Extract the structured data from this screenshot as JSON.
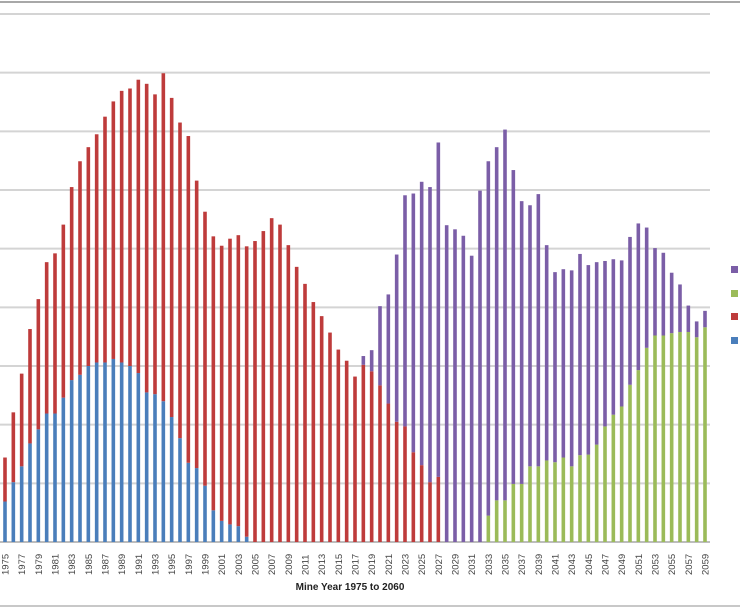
{
  "chart_data": {
    "type": "bar",
    "stacked": true,
    "title": "",
    "xlabel": "Mine Year 1975 to 2060",
    "ylabel": "",
    "ylim": [
      0,
      9
    ],
    "grid": true,
    "legend_placement": "right",
    "categories": [
      "1975",
      "1976",
      "1977",
      "1978",
      "1979",
      "1980",
      "1981",
      "1982",
      "1983",
      "1984",
      "1985",
      "1986",
      "1987",
      "1988",
      "1989",
      "1990",
      "1991",
      "1992",
      "1993",
      "1994",
      "1995",
      "1996",
      "1997",
      "1998",
      "1999",
      "2000",
      "2001",
      "2002",
      "2003",
      "2004",
      "2005",
      "2006",
      "2007",
      "2008",
      "2009",
      "2010",
      "2011",
      "2012",
      "2013",
      "2014",
      "2015",
      "2016",
      "2017",
      "2018",
      "2019",
      "2020",
      "2021",
      "2022",
      "2023",
      "2024",
      "2025",
      "2026",
      "2027",
      "2028",
      "2029",
      "2030",
      "2031",
      "2032",
      "2033",
      "2034",
      "2035",
      "2036",
      "2037",
      "2038",
      "2039",
      "2040",
      "2041",
      "2042",
      "2043",
      "2044",
      "2045",
      "2046",
      "2047",
      "2048",
      "2049",
      "2050",
      "2051",
      "2052",
      "2053",
      "2054",
      "2055",
      "2056",
      "2057",
      "2058",
      "2059"
    ],
    "tick_labels": [
      "1975",
      "1977",
      "1979",
      "1981",
      "1983",
      "1985",
      "1987",
      "1989",
      "1991",
      "1993",
      "1995",
      "1997",
      "1999",
      "2001",
      "2003",
      "2005",
      "2007",
      "2009",
      "2011",
      "2013",
      "2015",
      "2017",
      "2019",
      "2021",
      "2023",
      "2025",
      "2027",
      "2029",
      "2031",
      "2033",
      "2035",
      "2037",
      "2039",
      "2041",
      "2043",
      "2045",
      "2047",
      "2049",
      "2051",
      "2053",
      "2055",
      "2057",
      "2059"
    ],
    "series": [
      {
        "color": "#4A7EBB",
        "values": [
          0.69,
          1.02,
          1.29,
          1.68,
          1.92,
          2.19,
          2.19,
          2.46,
          2.76,
          2.85,
          3.0,
          3.06,
          3.06,
          3.12,
          3.06,
          3.0,
          2.88,
          2.55,
          2.52,
          2.4,
          2.13,
          1.77,
          1.35,
          1.26,
          0.96,
          0.54,
          0.36,
          0.3,
          0.27,
          0.09,
          0,
          0,
          0,
          0,
          0,
          0,
          0,
          0,
          0,
          0,
          0,
          0,
          0,
          0,
          0,
          0,
          0,
          0,
          0,
          0,
          0,
          0,
          0,
          0,
          0,
          0,
          0,
          0,
          0,
          0,
          0,
          0,
          0,
          0,
          0,
          0,
          0,
          0,
          0,
          0,
          0,
          0,
          0,
          0,
          0,
          0,
          0,
          0,
          0,
          0,
          0,
          0,
          0,
          0,
          0
        ]
      },
      {
        "color": "#9BBB59",
        "values": [
          0,
          0,
          0,
          0,
          0,
          0,
          0,
          0,
          0,
          0,
          0,
          0,
          0,
          0,
          0,
          0,
          0,
          0,
          0,
          0,
          0,
          0,
          0,
          0,
          0,
          0,
          0,
          0,
          0,
          0,
          0,
          0,
          0,
          0,
          0,
          0,
          0,
          0,
          0,
          0,
          0,
          0,
          0,
          0,
          0,
          0,
          0,
          0,
          0,
          0,
          0,
          0,
          0,
          0,
          0,
          0,
          0,
          0,
          0.45,
          0.71,
          0.71,
          0.99,
          0.99,
          1.29,
          1.29,
          1.39,
          1.36,
          1.44,
          1.29,
          1.48,
          1.49,
          1.66,
          1.97,
          2.17,
          2.31,
          2.68,
          2.93,
          3.31,
          3.52,
          3.52,
          3.56,
          3.58,
          3.58,
          3.49,
          3.66
        ]
      },
      {
        "color": "#BE3B3B",
        "values": [
          0.75,
          1.19,
          1.58,
          1.95,
          2.22,
          2.58,
          2.73,
          2.95,
          3.29,
          3.64,
          3.73,
          3.89,
          4.19,
          4.39,
          4.63,
          4.73,
          5.0,
          5.26,
          5.11,
          5.59,
          5.44,
          5.38,
          5.57,
          4.9,
          4.67,
          4.67,
          4.69,
          4.87,
          4.96,
          4.95,
          5.13,
          5.3,
          5.52,
          5.41,
          5.06,
          4.69,
          4.4,
          4.09,
          3.85,
          3.57,
          3.28,
          3.09,
          2.82,
          3.02,
          2.91,
          2.67,
          2.36,
          2.05,
          1.97,
          1.53,
          1.31,
          1.02,
          1.11,
          0,
          0,
          0,
          0,
          0,
          0,
          0,
          0,
          0,
          0,
          0,
          0,
          0,
          0,
          0,
          0,
          0,
          0,
          0,
          0,
          0,
          0,
          0,
          0,
          0,
          0,
          0,
          0,
          0,
          0,
          0,
          0
        ]
      },
      {
        "color": "#7B5EA7",
        "values": [
          0,
          0,
          0,
          0,
          0,
          0,
          0,
          0,
          0,
          0,
          0,
          0,
          0,
          0,
          0,
          0,
          0,
          0,
          0,
          0,
          0,
          0,
          0,
          0,
          0,
          0,
          0,
          0,
          0,
          0,
          0,
          0,
          0,
          0,
          0,
          0,
          0,
          0,
          0,
          0,
          0,
          0,
          0,
          0.15,
          0.36,
          1.35,
          1.86,
          2.85,
          3.94,
          4.41,
          4.83,
          5.03,
          5.7,
          5.4,
          5.33,
          5.22,
          4.88,
          5.99,
          6.04,
          6.02,
          6.32,
          5.35,
          4.82,
          4.45,
          4.64,
          3.67,
          3.24,
          3.21,
          3.34,
          3.43,
          3.23,
          3.11,
          2.82,
          2.65,
          2.49,
          2.52,
          2.5,
          2.05,
          1.49,
          1.41,
          1.03,
          0.81,
          0.45,
          0.27,
          0.28
        ]
      }
    ],
    "legend_swatch_order": [
      "#7B5EA7",
      "#9BBB59",
      "#BE3B3B",
      "#4A7EBB"
    ]
  }
}
